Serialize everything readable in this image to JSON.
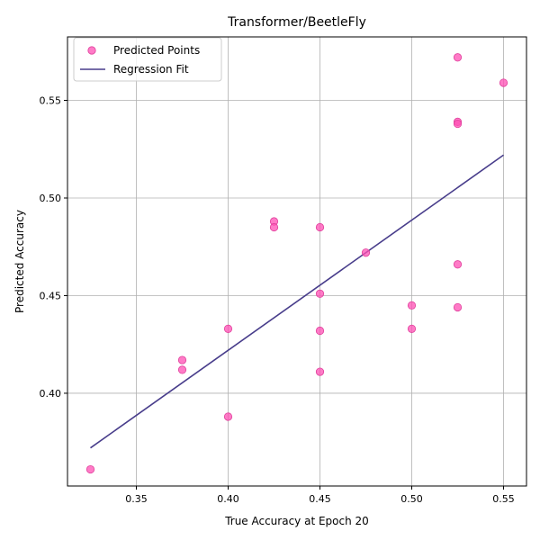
{
  "chart_data": {
    "type": "scatter",
    "title": "Transformer/BeetleFly",
    "xlabel": "True Accuracy at Epoch 20",
    "ylabel": "Predicted Accuracy",
    "xlim": [
      0.3125,
      0.5625
    ],
    "ylim": [
      0.3525,
      0.5825
    ],
    "xticks": [
      0.35,
      0.4,
      0.45,
      0.5,
      0.55
    ],
    "xtick_labels": [
      "0.35",
      "0.40",
      "0.45",
      "0.50",
      "0.55"
    ],
    "yticks": [
      0.4,
      0.45,
      0.5,
      0.55
    ],
    "ytick_labels": [
      "0.40",
      "0.45",
      "0.50",
      "0.55"
    ],
    "grid": true,
    "legend_position": "top-left",
    "series": [
      {
        "name": "Predicted Points",
        "kind": "scatter",
        "color": "#ff4fb4",
        "x": [
          0.325,
          0.375,
          0.375,
          0.4,
          0.4,
          0.425,
          0.425,
          0.45,
          0.45,
          0.45,
          0.45,
          0.475,
          0.5,
          0.5,
          0.525,
          0.525,
          0.525,
          0.525,
          0.525,
          0.55
        ],
        "y": [
          0.361,
          0.417,
          0.412,
          0.433,
          0.388,
          0.488,
          0.485,
          0.485,
          0.451,
          0.432,
          0.411,
          0.472,
          0.445,
          0.433,
          0.572,
          0.539,
          0.538,
          0.466,
          0.444,
          0.559
        ]
      },
      {
        "name": "Regression Fit",
        "kind": "line",
        "color": "#483d8b",
        "x": [
          0.325,
          0.55
        ],
        "y": [
          0.372,
          0.522
        ]
      }
    ]
  }
}
